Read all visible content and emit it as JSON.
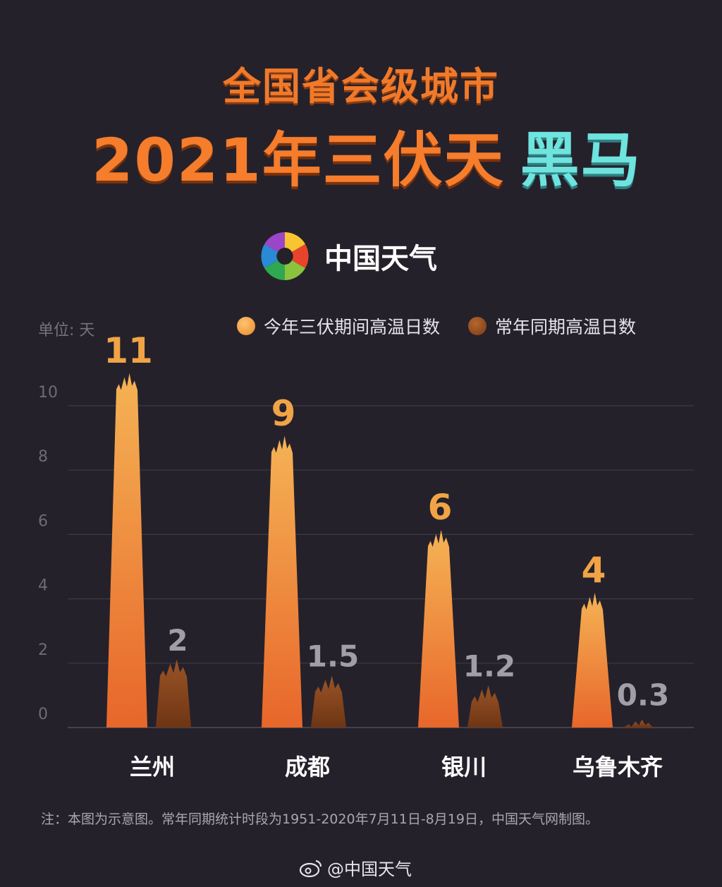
{
  "header": {
    "title_line1": "全国省会级城市",
    "title_line2_main": "2021年三伏天",
    "title_line2_highlight": "黑马"
  },
  "brand": {
    "logo_icon": "china-weather-swirl-logo",
    "name": "中国天气"
  },
  "colors": {
    "background": "#25212b",
    "current_series": "#f0a446",
    "normal_series": "#8a4a22",
    "title_orange": "#f57d2c",
    "title_teal": "#6fe3de"
  },
  "chart_data": {
    "type": "bar",
    "unit_label": "单位: 天",
    "categories": [
      "兰州",
      "成都",
      "银川",
      "乌鲁木齐"
    ],
    "series": [
      {
        "name": "今年三伏期间高温日数",
        "values": [
          11,
          9,
          6,
          4
        ]
      },
      {
        "name": "常年同期高温日数",
        "values": [
          2,
          1.5,
          1.2,
          0.3
        ]
      }
    ],
    "value_labels": [
      [
        "11",
        "9",
        "6",
        "4"
      ],
      [
        "2",
        "1.5",
        "1.2",
        "0.3"
      ]
    ],
    "yticks": [
      "0",
      "2",
      "4",
      "6",
      "8",
      "10"
    ],
    "ylim": [
      0,
      11
    ],
    "grid": true,
    "legend_position": "top-right"
  },
  "footer": {
    "note": "注：本图为示意图。常年同期统计时段为1951-2020年7月11日-8月19日，中国天气网制图。",
    "weibo_icon": "weibo-icon",
    "weibo_handle": "@中国天气"
  }
}
